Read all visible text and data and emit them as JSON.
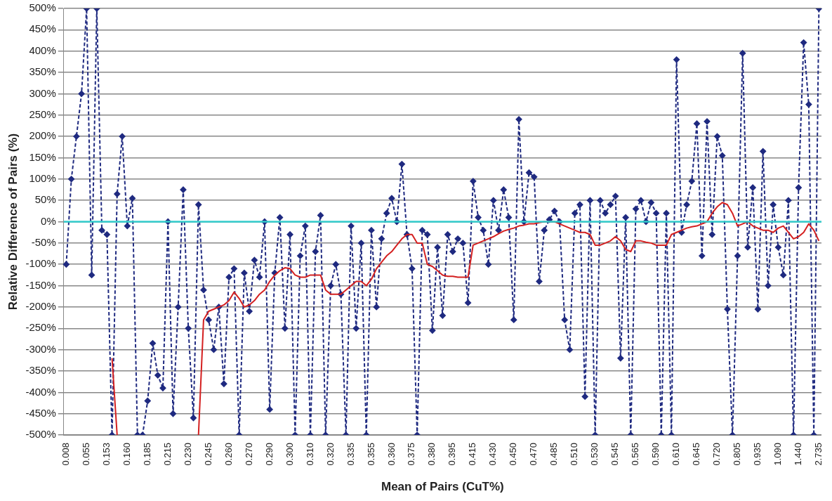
{
  "chart_data": {
    "type": "line",
    "xlabel": "Mean of Pairs (CuT%)",
    "ylabel": "Relative Difference of Pairs (%)",
    "categories": [
      "0.008",
      null,
      null,
      null,
      "0.055",
      null,
      null,
      null,
      "0.153",
      null,
      null,
      null,
      "0.160",
      null,
      null,
      null,
      "0.185",
      null,
      null,
      null,
      "0.215",
      null,
      null,
      null,
      "0.230",
      null,
      null,
      null,
      "0.245",
      null,
      null,
      null,
      "0.260",
      null,
      null,
      null,
      "0.270",
      null,
      null,
      null,
      "0.290",
      null,
      null,
      null,
      "0.300",
      null,
      null,
      null,
      "0.310",
      null,
      null,
      null,
      "0.320",
      null,
      null,
      null,
      "0.335",
      null,
      null,
      null,
      "0.355",
      null,
      null,
      null,
      "0.360",
      null,
      null,
      null,
      "0.375",
      null,
      null,
      null,
      "0.380",
      null,
      null,
      null,
      "0.395",
      null,
      null,
      null,
      "0.415",
      null,
      null,
      null,
      "0.430",
      null,
      null,
      null,
      "0.450",
      null,
      null,
      null,
      "0.470",
      null,
      null,
      null,
      "0.485",
      null,
      null,
      null,
      "0.510",
      null,
      null,
      null,
      "0.530",
      null,
      null,
      null,
      "0.545",
      null,
      null,
      null,
      "0.565",
      null,
      null,
      null,
      "0.590",
      null,
      null,
      null,
      "0.610",
      null,
      null,
      null,
      "0.645",
      null,
      null,
      null,
      "0.720",
      null,
      null,
      null,
      "0.805",
      null,
      null,
      null,
      "0.935",
      null,
      null,
      null,
      "1.090",
      null,
      null,
      null,
      "1.440",
      null,
      null,
      null,
      "2.735"
    ],
    "series": [
      {
        "color": "#1f2a80",
        "marker": "diamond",
        "line_style": "dashed",
        "values": [
          -100,
          100,
          200,
          300,
          500,
          -125,
          500,
          -20,
          -30,
          -500,
          65,
          200,
          -10,
          55,
          -500,
          -500,
          -420,
          -285,
          -360,
          -390,
          0,
          -450,
          -200,
          75,
          -250,
          -460,
          40,
          -160,
          -230,
          -300,
          -200,
          -380,
          -130,
          -110,
          -500,
          -120,
          -210,
          -90,
          -130,
          0,
          -440,
          -120,
          10,
          -250,
          -30,
          -500,
          -80,
          -10,
          -500,
          -70,
          15,
          -500,
          -150,
          -100,
          -170,
          -500,
          -10,
          -250,
          -50,
          -500,
          -20,
          -200,
          -40,
          20,
          55,
          0,
          135,
          -30,
          -110,
          -500,
          -20,
          -30,
          -255,
          -60,
          -220,
          -30,
          -70,
          -40,
          -50,
          -190,
          95,
          10,
          -20,
          -100,
          50,
          -20,
          75,
          10,
          -230,
          240,
          0,
          115,
          105,
          -140,
          -20,
          5,
          25,
          0,
          -230,
          -300,
          20,
          40,
          -410,
          50,
          -500,
          50,
          20,
          40,
          60,
          -320,
          10,
          -500,
          30,
          50,
          0,
          45,
          20,
          -500,
          20,
          -500,
          380,
          -25,
          40,
          95,
          230,
          -80,
          235,
          -30,
          200,
          155,
          -205,
          -500,
          -80,
          395,
          -60,
          80,
          -205,
          165,
          -150,
          40,
          -60,
          -125,
          50,
          -500,
          80,
          420,
          275,
          -500,
          500
        ]
      },
      {
        "color": "#d42020",
        "marker": "none",
        "line_style": "solid",
        "values": [
          null,
          null,
          null,
          null,
          null,
          null,
          null,
          null,
          null,
          -320,
          -500,
          null,
          null,
          null,
          null,
          null,
          null,
          null,
          null,
          null,
          null,
          null,
          null,
          null,
          null,
          null,
          -500,
          -230,
          -210,
          -205,
          -200,
          -195,
          -185,
          -165,
          -180,
          -200,
          -195,
          -185,
          -170,
          -160,
          -140,
          -125,
          -115,
          -108,
          -110,
          -125,
          -130,
          -130,
          -125,
          -125,
          -125,
          -160,
          -170,
          -170,
          -170,
          -160,
          -150,
          -140,
          -140,
          -150,
          -135,
          -110,
          -95,
          -80,
          -70,
          -55,
          -40,
          -30,
          -30,
          -50,
          -50,
          -100,
          -105,
          -115,
          -125,
          -128,
          -128,
          -130,
          -130,
          -130,
          -55,
          -50,
          -45,
          -40,
          -35,
          -28,
          -22,
          -18,
          -15,
          -10,
          -8,
          -5,
          -5,
          -2,
          0,
          0,
          0,
          -5,
          -10,
          -15,
          -20,
          -25,
          -25,
          -30,
          -55,
          -55,
          -50,
          -45,
          -35,
          -45,
          -65,
          -70,
          -45,
          -45,
          -48,
          -50,
          -55,
          -55,
          -55,
          -30,
          -25,
          -20,
          -15,
          -12,
          -10,
          -5,
          0,
          20,
          35,
          45,
          40,
          20,
          -10,
          -5,
          0,
          -10,
          -15,
          -20,
          -20,
          -25,
          -15,
          -10,
          -25,
          -40,
          -35,
          -25,
          -5,
          -20,
          -45
        ]
      }
    ],
    "ylim": [
      -500,
      500
    ],
    "yticks": [
      {
        "value": -500,
        "label": "-500%"
      },
      {
        "value": -450,
        "label": "-450%"
      },
      {
        "value": -400,
        "label": "-400%"
      },
      {
        "value": -350,
        "label": "-350%"
      },
      {
        "value": -300,
        "label": "-300%"
      },
      {
        "value": -250,
        "label": "-250%"
      },
      {
        "value": -200,
        "label": "-200%"
      },
      {
        "value": -150,
        "label": "-150%"
      },
      {
        "value": -100,
        "label": "-100%"
      },
      {
        "value": -50,
        "label": "-50%"
      },
      {
        "value": 0,
        "label": "0%"
      },
      {
        "value": 50,
        "label": "50%"
      },
      {
        "value": 100,
        "label": "100%"
      },
      {
        "value": 150,
        "label": "150%"
      },
      {
        "value": 200,
        "label": "200%"
      },
      {
        "value": 250,
        "label": "250%"
      },
      {
        "value": 300,
        "label": "300%"
      },
      {
        "value": 350,
        "label": "350%"
      },
      {
        "value": 400,
        "label": "400%"
      },
      {
        "value": 450,
        "label": "450%"
      },
      {
        "value": 500,
        "label": "500%"
      }
    ],
    "grid": "y",
    "legend": false,
    "ref_lines": [
      {
        "axis": "y",
        "value": 0,
        "color": "#33cccc"
      }
    ]
  }
}
